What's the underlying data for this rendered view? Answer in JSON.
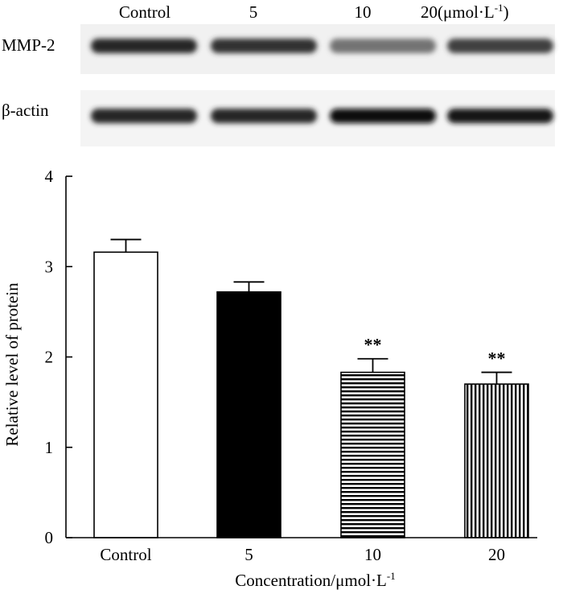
{
  "blot": {
    "lanes": [
      "Control",
      "5",
      "10",
      "20(μmol·L",
      "-1",
      ")"
    ],
    "rows": [
      {
        "label": "MMP-2",
        "intensity": [
          0.85,
          0.8,
          0.55,
          0.75
        ]
      },
      {
        "label": "β-actin",
        "intensity": [
          0.85,
          0.85,
          0.95,
          0.9
        ]
      }
    ]
  },
  "chart_data": {
    "type": "bar",
    "categories": [
      "Control",
      "5",
      "10",
      "20"
    ],
    "values": [
      3.16,
      2.72,
      1.83,
      1.7
    ],
    "errors": [
      0.14,
      0.11,
      0.15,
      0.13
    ],
    "patterns": [
      "white",
      "black",
      "horizontal-stripes",
      "vertical-stripes"
    ],
    "annotations": [
      "",
      "",
      "**",
      "**"
    ],
    "ylim": [
      0,
      4
    ],
    "yticks": [
      "0",
      "1",
      "2",
      "3",
      "4"
    ],
    "ylabel": "Relative level of protein",
    "xlabel_main": "Concentration/μmol·L",
    "xlabel_sup": "-1",
    "grid": false,
    "legend": "none"
  }
}
